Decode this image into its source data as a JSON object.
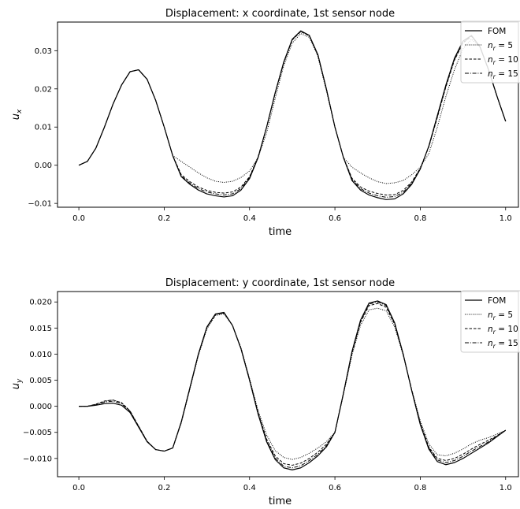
{
  "chart_data": [
    {
      "type": "line",
      "title": "Displacement: x coordinate, 1st sensor node",
      "xlabel": "time",
      "ylabel": "u",
      "ylabel_sub": "x",
      "xlim": [
        -0.05,
        1.03
      ],
      "ylim": [
        -0.011,
        0.0375
      ],
      "xticks": [
        0.0,
        0.2,
        0.4,
        0.6,
        0.8,
        1.0
      ],
      "xtick_labels": [
        "0.0",
        "0.2",
        "0.4",
        "0.6",
        "0.8",
        "1.0"
      ],
      "yticks": [
        -0.01,
        0.0,
        0.01,
        0.02,
        0.03
      ],
      "ytick_labels": [
        "−0.01",
        "0.00",
        "0.01",
        "0.02",
        "0.03"
      ],
      "legend_position": "top-right",
      "grid": false,
      "series": [
        {
          "name": "FOM",
          "name_main": "FOM",
          "name_sub": "",
          "name_suffix": "",
          "style": "solid",
          "x": [
            0.0,
            0.02,
            0.04,
            0.06,
            0.08,
            0.1,
            0.12,
            0.14,
            0.16,
            0.18,
            0.2,
            0.22,
            0.24,
            0.26,
            0.28,
            0.3,
            0.32,
            0.34,
            0.36,
            0.38,
            0.4,
            0.42,
            0.44,
            0.46,
            0.48,
            0.5,
            0.52,
            0.54,
            0.56,
            0.58,
            0.6,
            0.62,
            0.64,
            0.66,
            0.68,
            0.7,
            0.72,
            0.74,
            0.76,
            0.78,
            0.8,
            0.82,
            0.84,
            0.86,
            0.88,
            0.9,
            0.92,
            0.94,
            0.96,
            0.98,
            1.0
          ],
          "y": [
            0.0,
            0.001,
            0.0045,
            0.01,
            0.016,
            0.021,
            0.0245,
            0.025,
            0.0225,
            0.017,
            0.01,
            0.0025,
            -0.003,
            -0.005,
            -0.0065,
            -0.0075,
            -0.008,
            -0.0083,
            -0.008,
            -0.0065,
            -0.0035,
            0.002,
            0.01,
            0.019,
            0.027,
            0.033,
            0.0352,
            0.034,
            0.029,
            0.02,
            0.01,
            0.002,
            -0.004,
            -0.0065,
            -0.0078,
            -0.0085,
            -0.009,
            -0.0088,
            -0.0075,
            -0.005,
            -0.001,
            0.005,
            0.013,
            0.021,
            0.028,
            0.0325,
            0.034,
            0.031,
            0.025,
            0.018,
            0.0115
          ]
        },
        {
          "name": "n_r = 5",
          "name_main": "n",
          "name_sub": "r",
          "name_suffix": " = 5",
          "style": "dotted",
          "x": [
            0.0,
            0.02,
            0.04,
            0.06,
            0.08,
            0.1,
            0.12,
            0.14,
            0.16,
            0.18,
            0.2,
            0.22,
            0.24,
            0.26,
            0.28,
            0.3,
            0.32,
            0.34,
            0.36,
            0.38,
            0.4,
            0.42,
            0.44,
            0.46,
            0.48,
            0.5,
            0.52,
            0.54,
            0.56,
            0.58,
            0.6,
            0.62,
            0.64,
            0.66,
            0.68,
            0.7,
            0.72,
            0.74,
            0.76,
            0.78,
            0.8,
            0.82,
            0.84,
            0.86,
            0.88,
            0.9,
            0.92,
            0.94,
            0.96,
            0.98,
            1.0
          ],
          "y": [
            0.0,
            0.001,
            0.0045,
            0.01,
            0.016,
            0.021,
            0.0245,
            0.025,
            0.0225,
            0.017,
            0.01,
            0.0025,
            0.001,
            -0.0005,
            -0.002,
            -0.0033,
            -0.0042,
            -0.0045,
            -0.0042,
            -0.0032,
            -0.0015,
            0.002,
            0.0085,
            0.0175,
            0.026,
            0.032,
            0.0345,
            0.0335,
            0.0285,
            0.0195,
            0.01,
            0.002,
            -0.0005,
            -0.002,
            -0.0033,
            -0.0043,
            -0.0048,
            -0.0046,
            -0.004,
            -0.0025,
            -0.0005,
            0.003,
            0.01,
            0.018,
            0.025,
            0.0305,
            0.033,
            0.031,
            0.025,
            0.018,
            0.0115
          ]
        },
        {
          "name": "n_r = 10",
          "name_main": "n",
          "name_sub": "r",
          "name_suffix": " = 10",
          "style": "dashed",
          "x": [
            0.0,
            0.02,
            0.04,
            0.06,
            0.08,
            0.1,
            0.12,
            0.14,
            0.16,
            0.18,
            0.2,
            0.22,
            0.24,
            0.26,
            0.28,
            0.3,
            0.32,
            0.34,
            0.36,
            0.38,
            0.4,
            0.42,
            0.44,
            0.46,
            0.48,
            0.5,
            0.52,
            0.54,
            0.56,
            0.58,
            0.6,
            0.62,
            0.64,
            0.66,
            0.68,
            0.7,
            0.72,
            0.74,
            0.76,
            0.78,
            0.8,
            0.82,
            0.84,
            0.86,
            0.88,
            0.9,
            0.92,
            0.94,
            0.96,
            0.98,
            1.0
          ],
          "y": [
            0.0,
            0.001,
            0.0045,
            0.01,
            0.016,
            0.021,
            0.0245,
            0.025,
            0.0225,
            0.017,
            0.01,
            0.0025,
            -0.0025,
            -0.0043,
            -0.0057,
            -0.0066,
            -0.0071,
            -0.0073,
            -0.007,
            -0.0057,
            -0.003,
            0.0022,
            0.01,
            0.0188,
            0.0268,
            0.0328,
            0.035,
            0.0339,
            0.0289,
            0.02,
            0.01,
            0.002,
            -0.0034,
            -0.0057,
            -0.0068,
            -0.0074,
            -0.0078,
            -0.0077,
            -0.0066,
            -0.0044,
            -0.0008,
            0.0048,
            0.0125,
            0.0205,
            0.0275,
            0.032,
            0.0338,
            0.031,
            0.025,
            0.018,
            0.0115
          ]
        },
        {
          "name": "n_r = 15",
          "name_main": "n",
          "name_sub": "r",
          "name_suffix": " = 15",
          "style": "dashdot",
          "x": [
            0.0,
            0.02,
            0.04,
            0.06,
            0.08,
            0.1,
            0.12,
            0.14,
            0.16,
            0.18,
            0.2,
            0.22,
            0.24,
            0.26,
            0.28,
            0.3,
            0.32,
            0.34,
            0.36,
            0.38,
            0.4,
            0.42,
            0.44,
            0.46,
            0.48,
            0.5,
            0.52,
            0.54,
            0.56,
            0.58,
            0.6,
            0.62,
            0.64,
            0.66,
            0.68,
            0.7,
            0.72,
            0.74,
            0.76,
            0.78,
            0.8,
            0.82,
            0.84,
            0.86,
            0.88,
            0.9,
            0.92,
            0.94,
            0.96,
            0.98,
            1.0
          ],
          "y": [
            0.0,
            0.001,
            0.0045,
            0.01,
            0.016,
            0.021,
            0.0245,
            0.025,
            0.0225,
            0.017,
            0.01,
            0.0025,
            -0.0028,
            -0.0047,
            -0.0061,
            -0.007,
            -0.0075,
            -0.0078,
            -0.0075,
            -0.0061,
            -0.0032,
            0.0021,
            0.01,
            0.0189,
            0.0269,
            0.0329,
            0.0351,
            0.034,
            0.029,
            0.02,
            0.01,
            0.002,
            -0.0037,
            -0.0061,
            -0.0073,
            -0.008,
            -0.0084,
            -0.0082,
            -0.0071,
            -0.0047,
            -0.0009,
            0.0049,
            0.0127,
            0.0207,
            0.0277,
            0.0322,
            0.0339,
            0.031,
            0.025,
            0.018,
            0.0115
          ]
        }
      ]
    },
    {
      "type": "line",
      "title": "Displacement: y coordinate, 1st sensor node",
      "xlabel": "time",
      "ylabel": "u",
      "ylabel_sub": "y",
      "xlim": [
        -0.05,
        1.03
      ],
      "ylim": [
        -0.0135,
        0.022
      ],
      "xticks": [
        0.0,
        0.2,
        0.4,
        0.6,
        0.8,
        1.0
      ],
      "xtick_labels": [
        "0.0",
        "0.2",
        "0.4",
        "0.6",
        "0.8",
        "1.0"
      ],
      "yticks": [
        -0.01,
        -0.005,
        0.0,
        0.005,
        0.01,
        0.015,
        0.02
      ],
      "ytick_labels": [
        "−0.010",
        "−0.005",
        "0.000",
        "0.005",
        "0.010",
        "0.015",
        "0.020"
      ],
      "legend_position": "top-right",
      "grid": false,
      "series": [
        {
          "name": "FOM",
          "name_main": "FOM",
          "name_sub": "",
          "name_suffix": "",
          "style": "solid",
          "x": [
            0.0,
            0.02,
            0.04,
            0.06,
            0.08,
            0.1,
            0.12,
            0.14,
            0.16,
            0.18,
            0.2,
            0.22,
            0.24,
            0.26,
            0.28,
            0.3,
            0.32,
            0.34,
            0.36,
            0.38,
            0.4,
            0.42,
            0.44,
            0.46,
            0.48,
            0.5,
            0.52,
            0.54,
            0.56,
            0.58,
            0.6,
            0.62,
            0.64,
            0.66,
            0.68,
            0.7,
            0.72,
            0.74,
            0.76,
            0.78,
            0.8,
            0.82,
            0.84,
            0.86,
            0.88,
            0.9,
            0.92,
            0.94,
            0.96,
            0.98,
            1.0
          ],
          "y": [
            0.0,
            0.0,
            0.0002,
            0.0005,
            0.0006,
            0.0002,
            -0.0012,
            -0.004,
            -0.0068,
            -0.0083,
            -0.0086,
            -0.008,
            -0.003,
            0.0035,
            0.01,
            0.0152,
            0.0177,
            0.018,
            0.0155,
            0.011,
            0.005,
            -0.0015,
            -0.0068,
            -0.0102,
            -0.0118,
            -0.0122,
            -0.0118,
            -0.0108,
            -0.0095,
            -0.0078,
            -0.005,
            0.0025,
            0.0105,
            0.0165,
            0.0198,
            0.0202,
            0.0195,
            0.016,
            0.01,
            0.003,
            -0.0035,
            -0.0082,
            -0.0106,
            -0.0112,
            -0.0108,
            -0.01,
            -0.009,
            -0.008,
            -0.007,
            -0.0058,
            -0.0046
          ]
        },
        {
          "name": "n_r = 5",
          "name_main": "n",
          "name_sub": "r",
          "name_suffix": " = 5",
          "style": "dotted",
          "x": [
            0.0,
            0.02,
            0.04,
            0.06,
            0.08,
            0.1,
            0.12,
            0.14,
            0.16,
            0.18,
            0.2,
            0.22,
            0.24,
            0.26,
            0.28,
            0.3,
            0.32,
            0.34,
            0.36,
            0.38,
            0.4,
            0.42,
            0.44,
            0.46,
            0.48,
            0.5,
            0.52,
            0.54,
            0.56,
            0.58,
            0.6,
            0.62,
            0.64,
            0.66,
            0.68,
            0.7,
            0.72,
            0.74,
            0.76,
            0.78,
            0.8,
            0.82,
            0.84,
            0.86,
            0.88,
            0.9,
            0.92,
            0.94,
            0.96,
            0.98,
            1.0
          ],
          "y": [
            0.0,
            0.0,
            0.0004,
            0.001,
            0.0012,
            0.0007,
            -0.0009,
            -0.0038,
            -0.0067,
            -0.0083,
            -0.0086,
            -0.008,
            -0.0032,
            0.0032,
            0.0097,
            0.0148,
            0.0174,
            0.0177,
            0.0155,
            0.0112,
            0.0053,
            -0.0008,
            -0.0055,
            -0.0085,
            -0.0098,
            -0.0102,
            -0.0098,
            -0.009,
            -0.008,
            -0.0068,
            -0.005,
            0.0023,
            0.0098,
            0.0155,
            0.0185,
            0.0188,
            0.0183,
            0.0152,
            0.0098,
            0.0032,
            -0.0028,
            -0.0072,
            -0.0093,
            -0.0095,
            -0.009,
            -0.0082,
            -0.0072,
            -0.0065,
            -0.006,
            -0.0053,
            -0.0046
          ]
        },
        {
          "name": "n_r = 10",
          "name_main": "n",
          "name_sub": "r",
          "name_suffix": " = 10",
          "style": "dashed",
          "x": [
            0.0,
            0.02,
            0.04,
            0.06,
            0.08,
            0.1,
            0.12,
            0.14,
            0.16,
            0.18,
            0.2,
            0.22,
            0.24,
            0.26,
            0.28,
            0.3,
            0.32,
            0.34,
            0.36,
            0.38,
            0.4,
            0.42,
            0.44,
            0.46,
            0.48,
            0.5,
            0.52,
            0.54,
            0.56,
            0.58,
            0.6,
            0.62,
            0.64,
            0.66,
            0.68,
            0.7,
            0.72,
            0.74,
            0.76,
            0.78,
            0.8,
            0.82,
            0.84,
            0.86,
            0.88,
            0.9,
            0.92,
            0.94,
            0.96,
            0.98,
            1.0
          ],
          "y": [
            0.0,
            0.0,
            0.0004,
            0.001,
            0.0012,
            0.0007,
            -0.0009,
            -0.0038,
            -0.0067,
            -0.0083,
            -0.0086,
            -0.008,
            -0.0031,
            0.0034,
            0.0099,
            0.0151,
            0.0176,
            0.0179,
            0.0155,
            0.0111,
            0.0051,
            -0.0012,
            -0.0063,
            -0.0095,
            -0.011,
            -0.0113,
            -0.0109,
            -0.01,
            -0.0088,
            -0.0073,
            -0.005,
            0.0024,
            0.0102,
            0.0161,
            0.0193,
            0.0197,
            0.019,
            0.0157,
            0.0099,
            0.0031,
            -0.0032,
            -0.0078,
            -0.01,
            -0.0104,
            -0.01,
            -0.0092,
            -0.0082,
            -0.0073,
            -0.0065,
            -0.0056,
            -0.0046
          ]
        },
        {
          "name": "n_r = 15",
          "name_main": "n",
          "name_sub": "r",
          "name_suffix": " = 15",
          "style": "dashdot",
          "x": [
            0.0,
            0.02,
            0.04,
            0.06,
            0.08,
            0.1,
            0.12,
            0.14,
            0.16,
            0.18,
            0.2,
            0.22,
            0.24,
            0.26,
            0.28,
            0.3,
            0.32,
            0.34,
            0.36,
            0.38,
            0.4,
            0.42,
            0.44,
            0.46,
            0.48,
            0.5,
            0.52,
            0.54,
            0.56,
            0.58,
            0.6,
            0.62,
            0.64,
            0.66,
            0.68,
            0.7,
            0.72,
            0.74,
            0.76,
            0.78,
            0.8,
            0.82,
            0.84,
            0.86,
            0.88,
            0.9,
            0.92,
            0.94,
            0.96,
            0.98,
            1.0
          ],
          "y": [
            0.0,
            0.0,
            0.0003,
            0.0008,
            0.001,
            0.0005,
            -0.001,
            -0.0039,
            -0.0068,
            -0.0083,
            -0.0086,
            -0.008,
            -0.003,
            0.0035,
            0.01,
            0.0151,
            0.0176,
            0.0179,
            0.0155,
            0.011,
            0.005,
            -0.0014,
            -0.0066,
            -0.0099,
            -0.0115,
            -0.0118,
            -0.0114,
            -0.0104,
            -0.0092,
            -0.0076,
            -0.005,
            0.0025,
            0.0104,
            0.0163,
            0.0196,
            0.02,
            0.0193,
            0.0159,
            0.01,
            0.003,
            -0.0034,
            -0.008,
            -0.0103,
            -0.0108,
            -0.0104,
            -0.0096,
            -0.0086,
            -0.0077,
            -0.0068,
            -0.0057,
            -0.0046
          ]
        }
      ]
    }
  ]
}
